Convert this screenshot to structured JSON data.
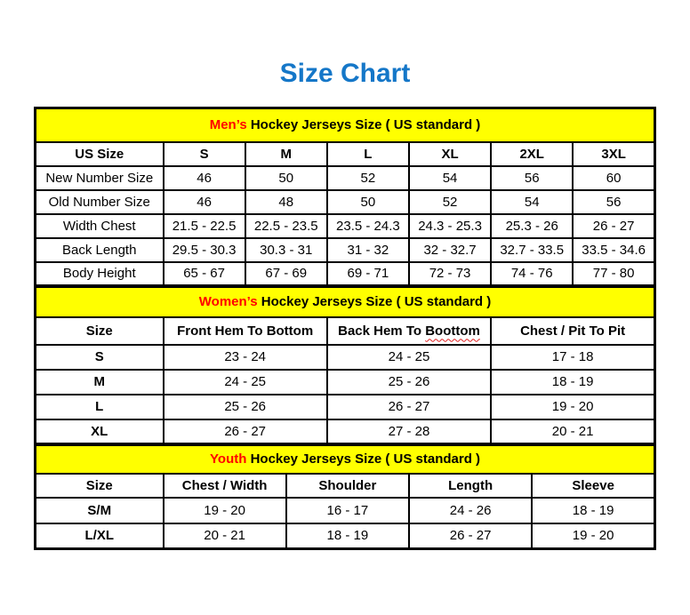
{
  "page_title": "Size Chart",
  "colors": {
    "title_blue": "#1577c8",
    "banner_yellow": "#ffff00",
    "accent_red": "#ff0000",
    "border_black": "#000000"
  },
  "sections": [
    {
      "id": "men",
      "banner_highlight": "Men’s",
      "banner_rest": " Hockey Jerseys Size ( US standard )",
      "columns": [
        "US Size",
        "S",
        "M",
        "L",
        "XL",
        "2XL",
        "3XL"
      ],
      "rows": [
        {
          "label": "New Number Size",
          "values": [
            "46",
            "50",
            "52",
            "54",
            "56",
            "60"
          ]
        },
        {
          "label": "Old Number Size",
          "values": [
            "46",
            "48",
            "50",
            "52",
            "54",
            "56"
          ]
        },
        {
          "label": "Width Chest",
          "values": [
            "21.5 - 22.5",
            "22.5 - 23.5",
            "23.5 - 24.3",
            "24.3 - 25.3",
            "25.3 - 26",
            "26 - 27"
          ]
        },
        {
          "label": "Back Length",
          "values": [
            "29.5 - 30.3",
            "30.3 - 31",
            "31 - 32",
            "32 - 32.7",
            "32.7 - 33.5",
            "33.5 - 34.6"
          ]
        },
        {
          "label": "Body Height",
          "values": [
            "65 - 67",
            "67 - 69",
            "69 - 71",
            "72 - 73",
            "74 - 76",
            "77 - 80"
          ]
        }
      ]
    },
    {
      "id": "women",
      "banner_highlight": "Women’s",
      "banner_rest": " Hockey Jerseys Size ( US standard )",
      "columns": [
        "Size",
        "Front Hem To Bottom",
        "Back Hem To Boottom",
        "Chest / Pit To Pit"
      ],
      "spellcheck": {
        "column_index": 2,
        "prefix": "Back Hem To ",
        "word": "Boottom"
      },
      "rows": [
        {
          "label": "S",
          "values": [
            "23 - 24",
            "24 - 25",
            "17 - 18"
          ]
        },
        {
          "label": "M",
          "values": [
            "24 - 25",
            "25 - 26",
            "18 - 19"
          ]
        },
        {
          "label": "L",
          "values": [
            "25 - 26",
            "26 - 27",
            "19 - 20"
          ]
        },
        {
          "label": "XL",
          "values": [
            "26 - 27",
            "27 - 28",
            "20 - 21"
          ]
        }
      ]
    },
    {
      "id": "youth",
      "banner_highlight": "Youth",
      "banner_rest": " Hockey Jerseys Size ( US standard )",
      "columns": [
        "Size",
        "Chest / Width",
        "Shoulder",
        "Length",
        "Sleeve"
      ],
      "rows": [
        {
          "label": "S/M",
          "values": [
            "19 - 20",
            "16 - 17",
            "24 - 26",
            "18 - 19"
          ]
        },
        {
          "label": "L/XL",
          "values": [
            "20 - 21",
            "18 - 19",
            "26 - 27",
            "19 - 20"
          ]
        }
      ]
    }
  ]
}
